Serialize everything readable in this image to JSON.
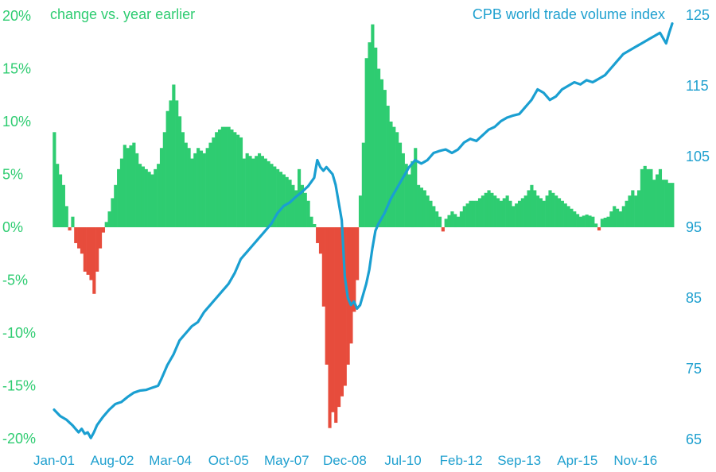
{
  "chart_data": {
    "type": "bar+line",
    "title_left": "change vs. year earlier",
    "title_right": "CPB world trade volume index",
    "x_tick_labels": [
      "Jan-01",
      "Aug-02",
      "Mar-04",
      "Oct-05",
      "May-07",
      "Dec-08",
      "Jul-10",
      "Feb-12",
      "Sep-13",
      "Apr-15",
      "Nov-16"
    ],
    "y_left": {
      "ticks": [
        "20%",
        "15%",
        "10%",
        "5%",
        "0%",
        "-5%",
        "-10%",
        "-15%",
        "-20%"
      ],
      "range": [
        -20,
        20
      ]
    },
    "y_right": {
      "ticks": [
        "125",
        "115",
        "105",
        "95",
        "85",
        "75",
        "65"
      ],
      "range": [
        65,
        125
      ]
    },
    "x_range_months": [
      0,
      202
    ],
    "colors": {
      "positive": "#2ecc71",
      "negative": "#e74c3c",
      "line": "#1a9fd1"
    },
    "series": [
      {
        "name": "change vs. year earlier",
        "kind": "bar",
        "axis": "left",
        "anchors": [
          [
            0,
            9.0
          ],
          [
            1,
            6.0
          ],
          [
            3,
            4.0
          ],
          [
            4,
            2.0
          ],
          [
            5,
            -0.3
          ],
          [
            6,
            1.0
          ],
          [
            7,
            -1.5
          ],
          [
            9,
            -2.5
          ],
          [
            10,
            -4.2
          ],
          [
            11,
            -4.5
          ],
          [
            12,
            -5.0
          ],
          [
            13,
            -6.3
          ],
          [
            14,
            -4.2
          ],
          [
            15,
            -2.0
          ],
          [
            16,
            -0.5
          ],
          [
            17,
            0.5
          ],
          [
            18,
            1.5
          ],
          [
            20,
            4.0
          ],
          [
            21,
            5.5
          ],
          [
            22,
            6.5
          ],
          [
            23,
            7.8
          ],
          [
            24,
            7.5
          ],
          [
            26,
            8.0
          ],
          [
            28,
            6.0
          ],
          [
            30,
            5.5
          ],
          [
            32,
            5.0
          ],
          [
            34,
            6.0
          ],
          [
            35,
            7.5
          ],
          [
            36,
            9.0
          ],
          [
            37,
            11.0
          ],
          [
            38,
            12.0
          ],
          [
            39,
            13.5
          ],
          [
            40,
            12.0
          ],
          [
            41,
            10.5
          ],
          [
            42,
            9.0
          ],
          [
            43,
            8.0
          ],
          [
            44,
            7.5
          ],
          [
            45,
            6.5
          ],
          [
            47,
            7.5
          ],
          [
            49,
            7.0
          ],
          [
            51,
            8.0
          ],
          [
            53,
            9.0
          ],
          [
            55,
            9.5
          ],
          [
            57,
            9.5
          ],
          [
            59,
            9.0
          ],
          [
            61,
            8.5
          ],
          [
            62,
            6.5
          ],
          [
            63,
            7.0
          ],
          [
            65,
            6.5
          ],
          [
            67,
            7.0
          ],
          [
            69,
            6.5
          ],
          [
            71,
            6.0
          ],
          [
            73,
            5.5
          ],
          [
            75,
            5.0
          ],
          [
            77,
            4.5
          ],
          [
            79,
            3.5
          ],
          [
            80,
            5.5
          ],
          [
            81,
            4.0
          ],
          [
            83,
            2.5
          ],
          [
            84,
            1.0
          ],
          [
            85,
            0.3
          ],
          [
            86,
            -1.5
          ],
          [
            87,
            -2.5
          ],
          [
            88,
            -7.5
          ],
          [
            89,
            -13.0
          ],
          [
            90,
            -19.0
          ],
          [
            91,
            -17.5
          ],
          [
            92,
            -18.5
          ],
          [
            93,
            -17.0
          ],
          [
            94,
            -16.0
          ],
          [
            95,
            -15.0
          ],
          [
            96,
            -13.0
          ],
          [
            97,
            -11.0
          ],
          [
            98,
            -8.0
          ],
          [
            99,
            -5.0
          ],
          [
            100,
            3.0
          ],
          [
            101,
            8.0
          ],
          [
            102,
            16.0
          ],
          [
            103,
            17.5
          ],
          [
            104,
            19.2
          ],
          [
            105,
            17.0
          ],
          [
            106,
            15.0
          ],
          [
            108,
            13.0
          ],
          [
            110,
            10.0
          ],
          [
            112,
            9.0
          ],
          [
            114,
            7.0
          ],
          [
            116,
            5.0
          ],
          [
            118,
            7.5
          ],
          [
            119,
            4.0
          ],
          [
            121,
            3.5
          ],
          [
            123,
            2.5
          ],
          [
            125,
            1.5
          ],
          [
            126,
            1.0
          ],
          [
            127,
            -0.4
          ],
          [
            128,
            0.8
          ],
          [
            130,
            1.5
          ],
          [
            132,
            1.0
          ],
          [
            134,
            2.0
          ],
          [
            136,
            2.5
          ],
          [
            138,
            2.5
          ],
          [
            140,
            3.0
          ],
          [
            142,
            3.5
          ],
          [
            144,
            3.0
          ],
          [
            146,
            2.5
          ],
          [
            148,
            3.0
          ],
          [
            150,
            2.0
          ],
          [
            152,
            2.5
          ],
          [
            154,
            3.0
          ],
          [
            156,
            4.0
          ],
          [
            158,
            3.0
          ],
          [
            160,
            2.5
          ],
          [
            162,
            3.5
          ],
          [
            164,
            3.0
          ],
          [
            166,
            2.5
          ],
          [
            168,
            2.0
          ],
          [
            170,
            1.5
          ],
          [
            172,
            1.0
          ],
          [
            174,
            1.2
          ],
          [
            176,
            1.0
          ],
          [
            178,
            -0.3
          ],
          [
            179,
            0.8
          ],
          [
            181,
            1.0
          ],
          [
            183,
            2.0
          ],
          [
            185,
            1.5
          ],
          [
            187,
            2.5
          ],
          [
            189,
            3.5
          ],
          [
            190,
            3.0
          ],
          [
            191,
            3.5
          ],
          [
            192,
            5.5
          ],
          [
            193,
            5.8
          ],
          [
            194,
            5.5
          ],
          [
            195,
            5.5
          ],
          [
            196,
            4.5
          ],
          [
            197,
            5.0
          ],
          [
            198,
            5.5
          ],
          [
            199,
            4.5
          ],
          [
            200,
            4.5
          ],
          [
            201,
            4.2
          ],
          [
            202,
            4.2
          ]
        ]
      },
      {
        "name": "CPB world trade volume index",
        "kind": "line",
        "axis": "right",
        "anchors": [
          [
            0,
            69.2
          ],
          [
            2,
            68.3
          ],
          [
            4,
            67.8
          ],
          [
            6,
            67.0
          ],
          [
            8,
            66.0
          ],
          [
            9,
            66.5
          ],
          [
            10,
            65.8
          ],
          [
            11,
            66.0
          ],
          [
            12,
            65.2
          ],
          [
            13,
            66.0
          ],
          [
            14,
            67.0
          ],
          [
            16,
            68.2
          ],
          [
            18,
            69.2
          ],
          [
            20,
            70.0
          ],
          [
            22,
            70.3
          ],
          [
            24,
            71.0
          ],
          [
            26,
            71.6
          ],
          [
            28,
            71.9
          ],
          [
            30,
            72.0
          ],
          [
            32,
            72.3
          ],
          [
            34,
            72.6
          ],
          [
            35,
            73.5
          ],
          [
            37,
            75.5
          ],
          [
            39,
            77.0
          ],
          [
            41,
            79.0
          ],
          [
            43,
            80.0
          ],
          [
            45,
            81.0
          ],
          [
            47,
            81.6
          ],
          [
            49,
            83.0
          ],
          [
            51,
            84.0
          ],
          [
            53,
            85.0
          ],
          [
            55,
            86.0
          ],
          [
            57,
            87.0
          ],
          [
            59,
            88.5
          ],
          [
            61,
            90.5
          ],
          [
            63,
            91.5
          ],
          [
            65,
            92.5
          ],
          [
            67,
            93.5
          ],
          [
            69,
            94.5
          ],
          [
            71,
            95.5
          ],
          [
            73,
            97.0
          ],
          [
            75,
            98.0
          ],
          [
            77,
            98.5
          ],
          [
            79,
            99.3
          ],
          [
            81,
            100.0
          ],
          [
            83,
            100.8
          ],
          [
            85,
            102.0
          ],
          [
            86,
            104.5
          ],
          [
            87,
            103.5
          ],
          [
            88,
            103.0
          ],
          [
            89,
            103.5
          ],
          [
            90,
            103.0
          ],
          [
            91,
            102.5
          ],
          [
            92,
            101.0
          ],
          [
            93,
            98.5
          ],
          [
            94,
            96.0
          ],
          [
            95,
            88.0
          ],
          [
            96,
            85.0
          ],
          [
            97,
            84.0
          ],
          [
            98,
            84.5
          ],
          [
            99,
            83.5
          ],
          [
            100,
            84.0
          ],
          [
            101,
            85.5
          ],
          [
            102,
            87.0
          ],
          [
            103,
            89.0
          ],
          [
            104,
            92.0
          ],
          [
            105,
            94.5
          ],
          [
            106,
            95.5
          ],
          [
            108,
            97.0
          ],
          [
            110,
            99.0
          ],
          [
            112,
            100.5
          ],
          [
            114,
            102.0
          ],
          [
            116,
            103.5
          ],
          [
            118,
            104.5
          ],
          [
            120,
            104.0
          ],
          [
            122,
            104.5
          ],
          [
            124,
            105.5
          ],
          [
            126,
            105.8
          ],
          [
            128,
            106.0
          ],
          [
            130,
            105.5
          ],
          [
            132,
            106.0
          ],
          [
            134,
            107.0
          ],
          [
            136,
            107.5
          ],
          [
            138,
            107.2
          ],
          [
            140,
            108.0
          ],
          [
            142,
            108.8
          ],
          [
            144,
            109.2
          ],
          [
            146,
            110.0
          ],
          [
            148,
            110.5
          ],
          [
            150,
            110.8
          ],
          [
            152,
            111.0
          ],
          [
            154,
            112.0
          ],
          [
            156,
            113.0
          ],
          [
            158,
            114.5
          ],
          [
            160,
            114.0
          ],
          [
            162,
            113.0
          ],
          [
            164,
            113.5
          ],
          [
            166,
            114.5
          ],
          [
            168,
            115.0
          ],
          [
            170,
            115.5
          ],
          [
            172,
            115.2
          ],
          [
            174,
            115.8
          ],
          [
            176,
            115.5
          ],
          [
            178,
            116.0
          ],
          [
            180,
            116.5
          ],
          [
            182,
            117.5
          ],
          [
            184,
            118.5
          ],
          [
            186,
            119.5
          ],
          [
            188,
            120.0
          ],
          [
            190,
            120.5
          ],
          [
            192,
            121.0
          ],
          [
            194,
            121.5
          ],
          [
            196,
            122.0
          ],
          [
            198,
            122.5
          ],
          [
            200,
            121.0
          ],
          [
            201,
            122.5
          ],
          [
            202,
            123.8
          ]
        ]
      }
    ]
  }
}
